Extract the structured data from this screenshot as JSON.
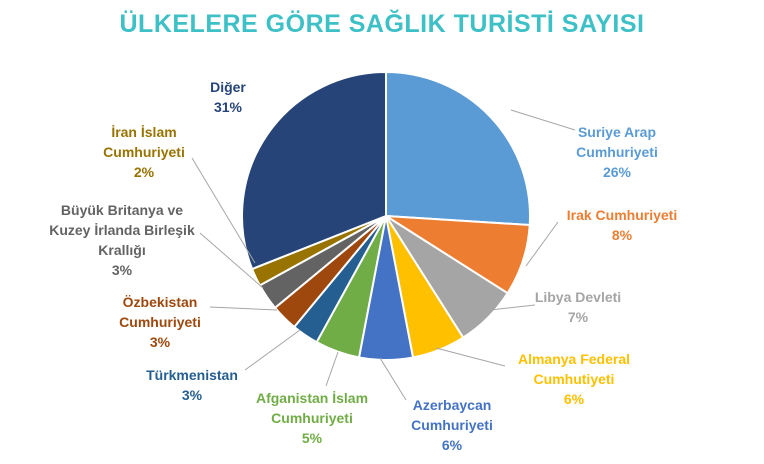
{
  "chart_data": {
    "type": "pie",
    "title": "ÜLKELERE GÖRE SAĞLIK TURİSTİ SAYISI",
    "title_color": "#3EC0C7",
    "slices": [
      {
        "label": [
          "Suriye Arap",
          "Cumhuriyeti"
        ],
        "percent_label": "26%",
        "value": 26,
        "color": "#5B9BD5"
      },
      {
        "label": [
          "Irak Cumhuriyeti"
        ],
        "percent_label": "8%",
        "value": 8,
        "color": "#ED7D31"
      },
      {
        "label": [
          "Libya Devleti"
        ],
        "percent_label": "7%",
        "value": 7,
        "color": "#A5A5A5"
      },
      {
        "label": [
          "Almanya Federal",
          "Cumhutiyeti"
        ],
        "percent_label": "6%",
        "value": 6,
        "color": "#FFC000"
      },
      {
        "label": [
          "Azerbaycan",
          "Cumhuriyeti"
        ],
        "percent_label": "6%",
        "value": 6,
        "color": "#4472C4"
      },
      {
        "label": [
          "Afganistan İslam",
          "Cumhuriyeti"
        ],
        "percent_label": "5%",
        "value": 5,
        "color": "#70AD47"
      },
      {
        "label": [
          "Türkmenistan"
        ],
        "percent_label": "3%",
        "value": 3,
        "color": "#255E91"
      },
      {
        "label": [
          "Özbekistan",
          "Cumhuriyeti"
        ],
        "percent_label": "3%",
        "value": 3,
        "color": "#9E480E"
      },
      {
        "label": [
          "Büyük Britanya ve",
          "Kuzey İrlanda  Birleşik",
          "Krallığı"
        ],
        "percent_label": "3%",
        "value": 3,
        "color": "#636363"
      },
      {
        "label": [
          "İran İslam",
          "Cumhuriyeti"
        ],
        "percent_label": "2%",
        "value": 2,
        "color": "#997300"
      },
      {
        "label": [
          "Diğer"
        ],
        "percent_label": "31%",
        "value": 31,
        "color": "#264478"
      }
    ]
  }
}
